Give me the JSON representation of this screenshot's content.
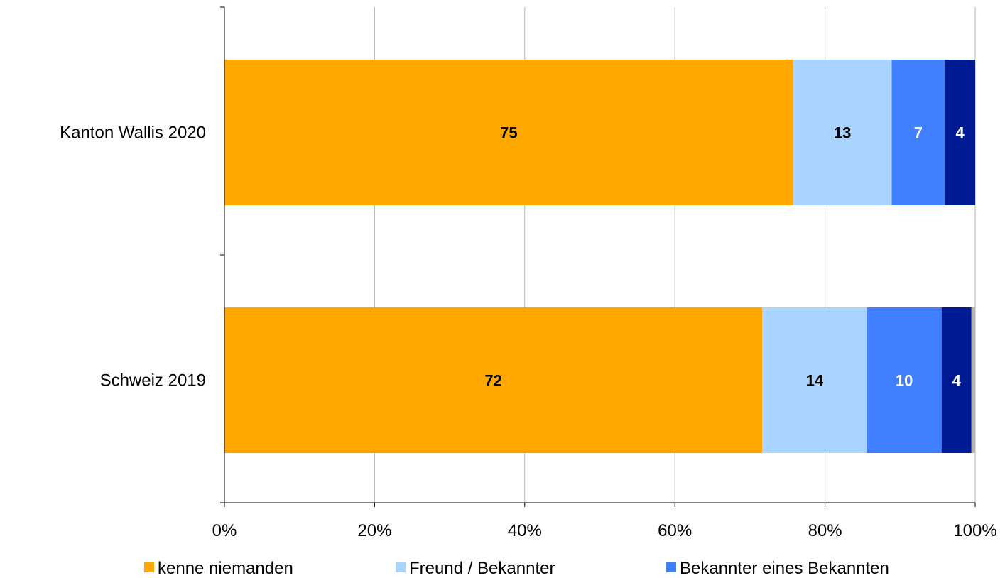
{
  "chart_data": {
    "type": "bar",
    "orientation": "horizontal",
    "stacked": "percent",
    "categories": [
      "Kanton Wallis 2020",
      "Schweiz 2019"
    ],
    "series": [
      {
        "name": "kenne niemanden",
        "values": [
          75,
          72
        ],
        "labels": [
          "75",
          "72"
        ],
        "color": "#FFA800",
        "label_color": "#000000",
        "in_legend": true
      },
      {
        "name": "Freund / Bekannter",
        "values": [
          13,
          14
        ],
        "labels": [
          "13",
          "14"
        ],
        "color": "#A8D4FF",
        "label_color": "#000000",
        "in_legend": true
      },
      {
        "name": "Bekannter eines Bekannten",
        "values": [
          7,
          10
        ],
        "labels": [
          "7",
          "10"
        ],
        "color": "#4080FF",
        "label_color": "#FFFFFF",
        "in_legend": true
      },
      {
        "name": "",
        "values": [
          4,
          4
        ],
        "labels": [
          "4",
          "4"
        ],
        "color": "#001A94",
        "label_color": "#FFFFFF",
        "in_legend": false
      },
      {
        "name": "",
        "values": [
          0,
          0.5
        ],
        "labels": [
          "",
          ""
        ],
        "color": "#B3B3B3",
        "label_color": "#000000",
        "in_legend": false
      }
    ],
    "x_ticks": [
      "0%",
      "20%",
      "40%",
      "60%",
      "80%",
      "100%"
    ],
    "xlim": [
      0,
      100
    ],
    "grid": "vertical",
    "legend_position": "bottom"
  }
}
